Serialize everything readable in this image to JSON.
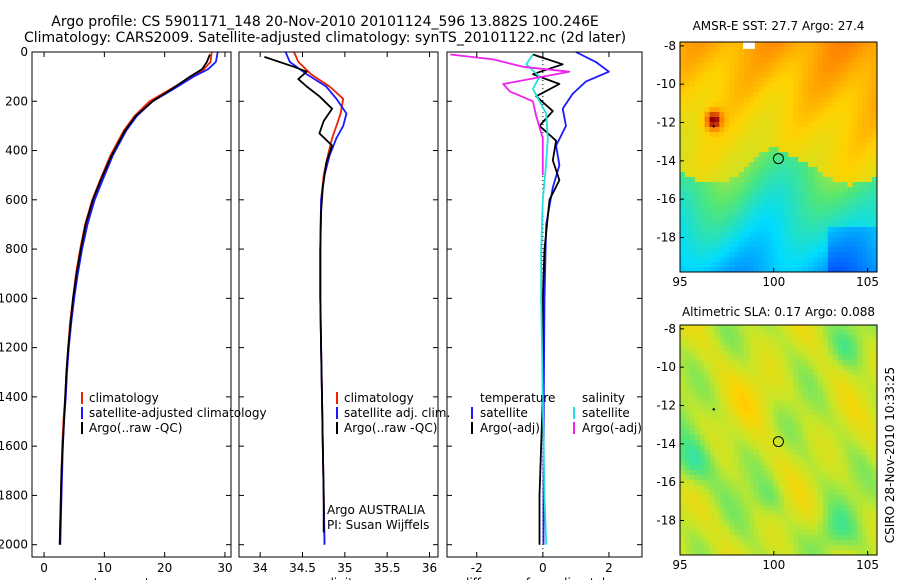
{
  "header": {
    "line1": "Argo profile: CS 5901171_148 20-Nov-2010 20101124_596 13.882S 100.246E",
    "line2": "Climatology: CARS2009. Satellite-adjusted climatology: synTS_20101122.nc (2d later)"
  },
  "side_label": "CSIRO 28-Nov-2010 10:33:25",
  "colors": {
    "climatology": "#ee2200",
    "satellite": "#1a1aff",
    "argo": "#000000",
    "salinity_sat": "#22e0e0",
    "salinity_argo": "#ee22ee"
  },
  "chart_data": [
    {
      "type": "line",
      "panel": "temperature",
      "xlabel": "temperature",
      "xlim": [
        -2,
        31
      ],
      "ylim": [
        2050,
        0
      ],
      "xticks": [
        0,
        10,
        20,
        30
      ],
      "yticks": [
        0,
        200,
        400,
        600,
        800,
        1000,
        1200,
        1400,
        1600,
        1800,
        2000
      ],
      "series": [
        {
          "name": "climatology",
          "color": "#ee2200",
          "points": [
            [
              27.8,
              0
            ],
            [
              27.6,
              40
            ],
            [
              26.5,
              70
            ],
            [
              24.5,
              100
            ],
            [
              21,
              150
            ],
            [
              17.5,
              200
            ],
            [
              15,
              260
            ],
            [
              13.2,
              320
            ],
            [
              11,
              420
            ],
            [
              9.3,
              520
            ],
            [
              8,
              600
            ],
            [
              6.8,
              700
            ],
            [
              6,
              800
            ],
            [
              5.3,
              900
            ],
            [
              4.8,
              1000
            ],
            [
              4.3,
              1100
            ],
            [
              4,
              1200
            ],
            [
              3.7,
              1300
            ],
            [
              3.5,
              1400
            ],
            [
              3.2,
              1500
            ],
            [
              3,
              1600
            ],
            [
              2.9,
              1700
            ],
            [
              2.8,
              1800
            ],
            [
              2.7,
              1900
            ],
            [
              2.6,
              2000
            ]
          ]
        },
        {
          "name": "satellite-adjusted climatology",
          "color": "#1a1aff",
          "points": [
            [
              28.8,
              0
            ],
            [
              28.5,
              40
            ],
            [
              27.2,
              70
            ],
            [
              24.8,
              100
            ],
            [
              21.5,
              150
            ],
            [
              18,
              200
            ],
            [
              15.4,
              260
            ],
            [
              13.6,
              320
            ],
            [
              11.4,
              420
            ],
            [
              9.7,
              520
            ],
            [
              8.4,
              600
            ],
            [
              7.2,
              700
            ],
            [
              6.3,
              800
            ],
            [
              5.6,
              900
            ],
            [
              5,
              1000
            ],
            [
              4.5,
              1100
            ],
            [
              4.1,
              1200
            ],
            [
              3.8,
              1300
            ],
            [
              3.6,
              1400
            ],
            [
              3.3,
              1500
            ],
            [
              3.1,
              1600
            ],
            [
              3,
              1700
            ],
            [
              2.9,
              1800
            ],
            [
              2.8,
              1900
            ],
            [
              2.7,
              2000
            ]
          ]
        },
        {
          "name": "Argo(..raw -QC)",
          "color": "#000000",
          "points": [
            [
              27.5,
              10
            ],
            [
              27,
              40
            ],
            [
              26.2,
              70
            ],
            [
              24.2,
              100
            ],
            [
              21.2,
              150
            ],
            [
              18,
              200
            ],
            [
              15.2,
              260
            ],
            [
              13.4,
              320
            ],
            [
              11.2,
              420
            ],
            [
              9.4,
              520
            ],
            [
              8.1,
              600
            ],
            [
              6.9,
              700
            ],
            [
              6.1,
              800
            ],
            [
              5.4,
              900
            ],
            [
              4.8,
              1000
            ],
            [
              4.4,
              1100
            ],
            [
              4,
              1200
            ],
            [
              3.7,
              1300
            ],
            [
              3.5,
              1400
            ],
            [
              3.3,
              1500
            ],
            [
              3.1,
              1600
            ],
            [
              2.9,
              1700
            ],
            [
              2.8,
              1800
            ],
            [
              2.7,
              1900
            ],
            [
              2.6,
              2000
            ]
          ]
        }
      ],
      "legend": [
        "climatology",
        "satellite-adjusted climatology",
        "Argo(..raw -QC)"
      ]
    },
    {
      "type": "line",
      "panel": "salinity",
      "xlabel": "salinity",
      "xlim": [
        33.75,
        36.1
      ],
      "ylim": [
        2050,
        0
      ],
      "xticks": [
        34,
        34.5,
        35,
        35.5,
        36
      ],
      "series": [
        {
          "name": "climatology",
          "color": "#ee2200",
          "points": [
            [
              34.4,
              0
            ],
            [
              34.45,
              40
            ],
            [
              34.6,
              90
            ],
            [
              34.82,
              140
            ],
            [
              34.98,
              190
            ],
            [
              34.95,
              250
            ],
            [
              34.9,
              300
            ],
            [
              34.85,
              350
            ],
            [
              34.8,
              420
            ],
            [
              34.75,
              500
            ],
            [
              34.72,
              600
            ],
            [
              34.71,
              800
            ],
            [
              34.71,
              1000
            ],
            [
              34.72,
              1200
            ],
            [
              34.73,
              1400
            ],
            [
              34.74,
              1600
            ],
            [
              34.75,
              1800
            ],
            [
              34.76,
              2000
            ]
          ]
        },
        {
          "name": "satellite adj. clim.",
          "color": "#1a1aff",
          "points": [
            [
              34.3,
              0
            ],
            [
              34.35,
              40
            ],
            [
              34.55,
              90
            ],
            [
              34.78,
              140
            ],
            [
              34.9,
              190
            ],
            [
              35.02,
              250
            ],
            [
              34.98,
              300
            ],
            [
              34.9,
              350
            ],
            [
              34.82,
              420
            ],
            [
              34.76,
              500
            ],
            [
              34.72,
              600
            ],
            [
              34.71,
              800
            ],
            [
              34.71,
              1000
            ],
            [
              34.72,
              1200
            ],
            [
              34.73,
              1400
            ],
            [
              34.74,
              1600
            ],
            [
              34.75,
              1800
            ],
            [
              34.76,
              2000
            ]
          ]
        },
        {
          "name": "Argo(..raw -QC)",
          "color": "#000000",
          "points": [
            [
              34.05,
              20
            ],
            [
              34.4,
              60
            ],
            [
              34.55,
              80
            ],
            [
              34.45,
              110
            ],
            [
              34.55,
              140
            ],
            [
              34.7,
              180
            ],
            [
              34.85,
              230
            ],
            [
              34.75,
              280
            ],
            [
              34.7,
              330
            ],
            [
              34.85,
              380
            ],
            [
              34.78,
              450
            ],
            [
              34.74,
              550
            ],
            [
              34.72,
              650
            ],
            [
              34.71,
              800
            ],
            [
              34.71,
              1000
            ],
            [
              34.72,
              1200
            ],
            [
              34.73,
              1400
            ],
            [
              34.74,
              1600
            ],
            [
              34.75,
              1800
            ],
            [
              34.75,
              1950
            ]
          ]
        }
      ],
      "legend": [
        "climatology",
        "satellite adj. clim.",
        "Argo(..raw -QC)"
      ],
      "annotation": [
        "Argo AUSTRALIA",
        "PI: Susan Wijffels"
      ]
    },
    {
      "type": "line",
      "panel": "difference",
      "xlabel": "difference from climatology",
      "xlim": [
        -2.9,
        3.0
      ],
      "ylim": [
        2050,
        0
      ],
      "xticks": [
        -2,
        0,
        2
      ],
      "series": [
        {
          "name": "temperature satellite",
          "color": "#1a1aff",
          "points": [
            [
              1.0,
              0
            ],
            [
              1.6,
              40
            ],
            [
              2.0,
              80
            ],
            [
              1.3,
              120
            ],
            [
              0.9,
              170
            ],
            [
              0.6,
              230
            ],
            [
              0.7,
              300
            ],
            [
              0.4,
              380
            ],
            [
              0.5,
              460
            ],
            [
              0.3,
              550
            ],
            [
              0.1,
              700
            ],
            [
              0.05,
              1000
            ],
            [
              0.03,
              1400
            ],
            [
              0.02,
              1800
            ],
            [
              0.02,
              2000
            ]
          ]
        },
        {
          "name": "temperature Argo(-adj)",
          "color": "#000000",
          "points": [
            [
              -0.3,
              10
            ],
            [
              0.6,
              50
            ],
            [
              -0.3,
              90
            ],
            [
              0.5,
              130
            ],
            [
              -0.2,
              180
            ],
            [
              0.3,
              240
            ],
            [
              -0.1,
              300
            ],
            [
              0.4,
              360
            ],
            [
              0.3,
              440
            ],
            [
              0.5,
              520
            ],
            [
              0.2,
              600
            ],
            [
              0.05,
              800
            ],
            [
              0,
              1000
            ],
            [
              0,
              1400
            ],
            [
              -0.1,
              1800
            ],
            [
              -0.1,
              2000
            ]
          ]
        },
        {
          "name": "salinity satellite",
          "color": "#22e0e0",
          "points": [
            [
              -0.3,
              10
            ],
            [
              -0.5,
              50
            ],
            [
              -0.1,
              100
            ],
            [
              -0.3,
              150
            ],
            [
              0.1,
              250
            ],
            [
              0.15,
              350
            ],
            [
              0.1,
              450
            ],
            [
              0,
              600
            ],
            [
              -0.05,
              800
            ],
            [
              -0.05,
              1000
            ],
            [
              0,
              1400
            ],
            [
              0.05,
              1800
            ],
            [
              0.1,
              2000
            ]
          ]
        },
        {
          "name": "salinity Argo(-adj)",
          "color": "#ee22ee",
          "points": [
            [
              -2.8,
              10
            ],
            [
              -1.5,
              30
            ],
            [
              -0.6,
              60
            ],
            [
              0.8,
              80
            ],
            [
              -1.2,
              130
            ],
            [
              -1.0,
              160
            ],
            [
              -0.3,
              200
            ],
            [
              -0.2,
              260
            ],
            [
              0,
              350
            ],
            [
              0,
              500
            ]
          ]
        }
      ],
      "legend_headers": [
        "temperature",
        "salinity"
      ],
      "legend_left": [
        "satellite",
        "Argo(-adj)"
      ],
      "legend_right": [
        "satellite",
        "Argo(-adj)"
      ]
    },
    {
      "type": "heatmap",
      "panel": "sst_map",
      "title": "AMSR-E SST: 27.7  Argo: 27.4",
      "xlim": [
        95,
        105.5
      ],
      "ylim": [
        -19.8,
        -7.8
      ],
      "xticks": [
        95,
        100,
        105
      ],
      "yticks": [
        -8,
        -10,
        -12,
        -14,
        -16,
        -18
      ],
      "argo_position": [
        100.246,
        -13.882
      ]
    },
    {
      "type": "heatmap",
      "panel": "sla_map",
      "title": "Altimetric SLA: 0.17  Argo: 0.088",
      "xlim": [
        95,
        105.5
      ],
      "ylim": [
        -19.8,
        -7.8
      ],
      "xticks": [
        95,
        100,
        105
      ],
      "yticks": [
        -8,
        -10,
        -12,
        -14,
        -16,
        -18
      ],
      "argo_position": [
        100.246,
        -13.882
      ]
    }
  ]
}
